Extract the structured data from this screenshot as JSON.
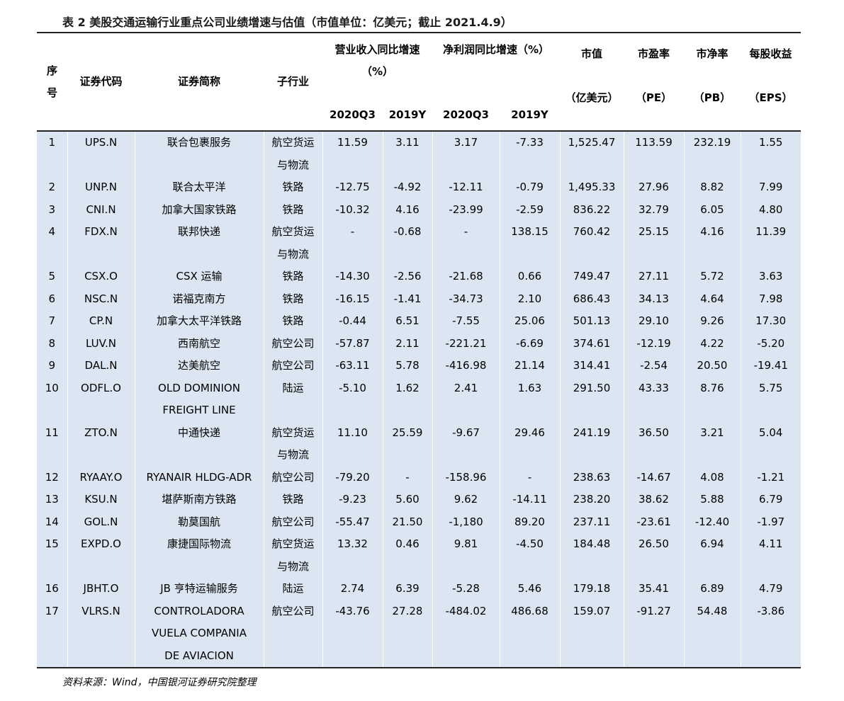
{
  "title": "表 2 美股交通运输行业重点公司业绩增速与估值（市值单位：亿美元；截止 2021.4.9）",
  "table": {
    "header": {
      "row1": [
        "序号",
        "证券代码",
        "证券简称",
        "子行业",
        "营业收入同比增速（%）",
        "净利润同比增速（%）",
        "市值",
        "市盈率",
        "市净率",
        "每股收益"
      ],
      "row2": [
        "2020Q3",
        "2019Y",
        "2020Q3",
        "2019Y",
        "（亿美元）",
        "（PE）",
        "（PB）",
        "（EPS）"
      ]
    },
    "rows": [
      [
        "1",
        "UPS.N",
        "联合包裹服务",
        "航空货运与物流",
        "11.59",
        "3.11",
        "3.17",
        "-7.33",
        "1,525.47",
        "113.59",
        "232.19",
        "1.55"
      ],
      [
        "2",
        "UNP.N",
        "联合太平洋",
        "铁路",
        "-12.75",
        "-4.92",
        "-12.11",
        "-0.79",
        "1,495.33",
        "27.96",
        "8.82",
        "7.99"
      ],
      [
        "3",
        "CNI.N",
        "加拿大国家铁路",
        "铁路",
        "-10.32",
        "4.16",
        "-23.99",
        "-2.59",
        "836.22",
        "32.79",
        "6.05",
        "4.80"
      ],
      [
        "4",
        "FDX.N",
        "联邦快递",
        "航空货运与物流",
        "-",
        "-0.68",
        "-",
        "138.15",
        "760.42",
        "25.15",
        "4.16",
        "11.39"
      ],
      [
        "5",
        "CSX.O",
        "CSX 运输",
        "铁路",
        "-14.30",
        "-2.56",
        "-21.68",
        "0.66",
        "749.47",
        "27.11",
        "5.72",
        "3.63"
      ],
      [
        "6",
        "NSC.N",
        "诺福克南方",
        "铁路",
        "-16.15",
        "-1.41",
        "-34.73",
        "2.10",
        "686.43",
        "34.13",
        "4.64",
        "7.98"
      ],
      [
        "7",
        "CP.N",
        "加拿大太平洋铁路",
        "铁路",
        "-0.44",
        "6.51",
        "-7.55",
        "25.06",
        "501.13",
        "29.10",
        "9.26",
        "17.30"
      ],
      [
        "8",
        "LUV.N",
        "西南航空",
        "航空公司",
        "-57.87",
        "2.11",
        "-221.21",
        "-6.69",
        "374.61",
        "-12.19",
        "4.22",
        "-5.20"
      ],
      [
        "9",
        "DAL.N",
        "达美航空",
        "航空公司",
        "-63.11",
        "5.78",
        "-416.98",
        "21.14",
        "314.41",
        "-2.54",
        "20.50",
        "-19.41"
      ],
      [
        "10",
        "ODFL.O",
        [
          "OLD DOMINION",
          "FREIGHT LINE"
        ],
        "陆运",
        "-5.10",
        "1.62",
        "2.41",
        "1.63",
        "291.50",
        "43.33",
        "8.76",
        "5.75"
      ],
      [
        "11",
        "ZTO.N",
        "中通快递",
        "航空货运与物流",
        "11.10",
        "25.59",
        "-9.67",
        "29.46",
        "241.19",
        "36.50",
        "3.21",
        "5.04"
      ],
      [
        "12",
        "RYAAY.O",
        "RYANAIR HLDG-ADR",
        "航空公司",
        "-79.20",
        "-",
        "-158.96",
        "-",
        "238.63",
        "-14.67",
        "4.08",
        "-1.21"
      ],
      [
        "13",
        "KSU.N",
        "堪萨斯南方铁路",
        "铁路",
        "-9.23",
        "5.60",
        "9.62",
        "-14.11",
        "238.20",
        "38.62",
        "5.88",
        "6.79"
      ],
      [
        "14",
        "GOL.N",
        "勒莫国航",
        "航空公司",
        "-55.47",
        "21.50",
        "-1,180",
        "89.20",
        "237.11",
        "-23.61",
        "-12.40",
        "-1.97"
      ],
      [
        "15",
        "EXPD.O",
        "康捷国际物流",
        "航空货运与物流",
        "13.32",
        "0.46",
        "9.81",
        "-4.50",
        "184.48",
        "26.50",
        "6.94",
        "4.11"
      ],
      [
        "16",
        "JBHT.O",
        "JB 亨特运输服务",
        "陆运",
        "2.74",
        "6.39",
        "-5.28",
        "5.46",
        "179.18",
        "35.41",
        "6.89",
        "4.79"
      ],
      [
        "17",
        "VLRS.N",
        [
          "CONTROLADORA",
          "VUELA COMPANIA",
          "DE AVIACION"
        ],
        "航空公司",
        "-43.76",
        "27.28",
        "-484.02",
        "486.68",
        "159.07",
        "-91.27",
        "54.48",
        "-3.86"
      ]
    ]
  },
  "source": "资料来源：Wind，中国银河证券研究院整理"
}
